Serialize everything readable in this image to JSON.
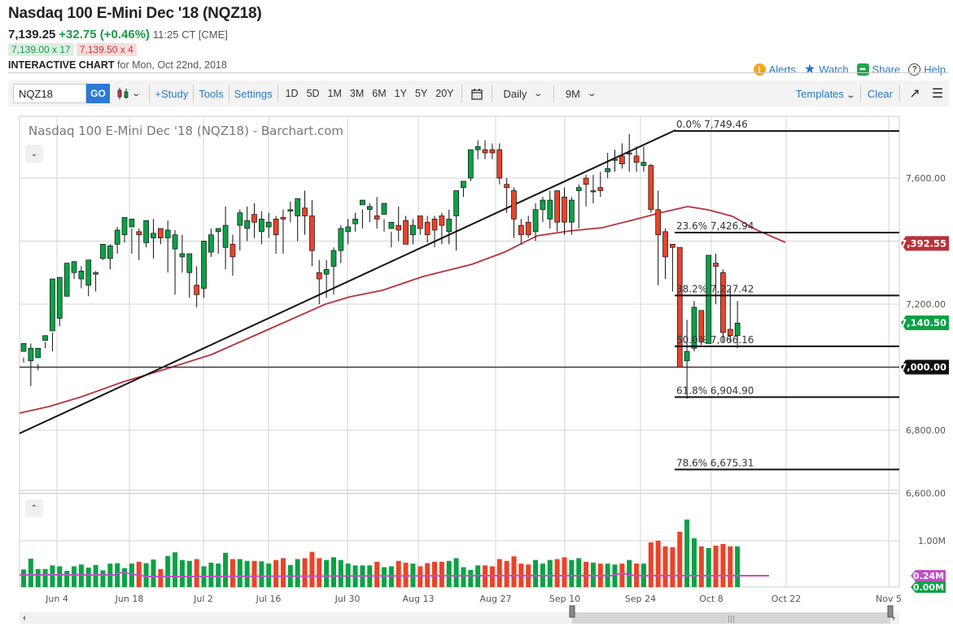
{
  "header": {
    "title": "Nasdaq 100 E-Mini Dec '18 (NQZ18)",
    "last_price": "7,139.25",
    "change": "+32.75 (+0.46%)",
    "time": "11:25 CT [CME]",
    "bid": "7,139.00 x 17",
    "ask": "7,139.50 x 4",
    "chart_label_bold": "INTERACTIVE CHART",
    "chart_label_rest": " for Mon, Oct 22nd, 2018"
  },
  "actions": {
    "alerts": "Alerts",
    "watch": "Watch",
    "share": "Share",
    "help": "Help"
  },
  "toolbar": {
    "symbol_value": "NQZ18",
    "go_label": "GO",
    "study_label": "+Study",
    "tools_label": "Tools",
    "settings_label": "Settings",
    "periods": [
      "1D",
      "5D",
      "1M",
      "3M",
      "6M",
      "1Y",
      "5Y",
      "20Y"
    ],
    "interval_label": "Daily",
    "range_label": "9M",
    "templates_label": "Templates",
    "clear_label": "Clear"
  },
  "colors": {
    "up": "#0aa245",
    "down": "#ea4328",
    "ma": "#b8323b",
    "volume_ma": "#c050c8",
    "link": "#2a7ac4",
    "grid": "#cccccc"
  },
  "chart_data": {
    "type": "candlestick",
    "title": "Nasdaq 100 E-Mini Dec '18 (NQZ18) - Barchart.com",
    "y_axis": {
      "ticks": [
        "7,600.00",
        "7,200.00",
        "6,800.00",
        "6,600.00"
      ],
      "price_tags": [
        {
          "label": "7,392.55",
          "value": 7392.55,
          "color": "#b8323b"
        },
        {
          "label": "7,140.50",
          "value": 7140.5,
          "color": "#0aa245"
        },
        {
          "label": "7,000.00",
          "value": 7000.0,
          "color": "#111111"
        }
      ]
    },
    "x_axis": {
      "ticks": [
        "Jun 4",
        "Jun 18",
        "Jul 2",
        "Jul 16",
        "Jul 30",
        "Aug 13",
        "Aug 27",
        "Sep 10",
        "Sep 24",
        "Oct 8",
        "Oct 22",
        "Nov 5"
      ]
    },
    "fibonacci": [
      {
        "label": "0.0% 7,749.46",
        "value": 7749.46
      },
      {
        "label": "23.6% 7,426.94",
        "value": 7426.94
      },
      {
        "label": "38.2% 7,227.42",
        "value": 7227.42
      },
      {
        "label": "50.0% 7,066.16",
        "value": 7066.16
      },
      {
        "label": "61.8% 6,904.90",
        "value": 6904.9
      },
      {
        "label": "78.6% 6,675.31",
        "value": 6675.31
      }
    ],
    "horizontal_line": 7000.0,
    "trendline": {
      "from_price": 6780,
      "to_price": 7749.46,
      "from_date": "May 25",
      "to_date": "Oct 1"
    },
    "moving_average": {
      "last": 7392.55
    },
    "candles": [
      [
        7050,
        7075,
        7030,
        7015
      ],
      [
        7020,
        7060,
        6940,
        7075
      ],
      [
        7030,
        7060,
        6990,
        7010
      ],
      [
        7085,
        7100,
        7080,
        7060
      ],
      [
        7115,
        7280,
        7050,
        7110
      ],
      [
        7155,
        7285,
        7130,
        7180
      ],
      [
        7225,
        7330,
        7200,
        7200
      ],
      [
        7300,
        7335,
        7280,
        7330
      ],
      [
        7280,
        7305,
        7250,
        7320
      ],
      [
        7260,
        7340,
        7225,
        7260
      ],
      [
        7295,
        7300,
        7240,
        7305
      ],
      [
        7345,
        7390,
        7345,
        7340
      ],
      [
        7345,
        7385,
        7310,
        7390
      ],
      [
        7390,
        7435,
        7360,
        7445
      ],
      [
        7420,
        7475,
        7395,
        7425
      ],
      [
        7445,
        7470,
        7360,
        7440
      ],
      [
        7430,
        7420,
        7340,
        7440
      ],
      [
        7395,
        7465,
        7380,
        7465
      ],
      [
        7410,
        7425,
        7345,
        7470
      ],
      [
        7440,
        7410,
        7390,
        7410
      ],
      [
        7410,
        7435,
        7300,
        7465
      ],
      [
        7375,
        7420,
        7230,
        7435
      ],
      [
        7350,
        7360,
        7300,
        7420
      ],
      [
        7300,
        7360,
        7220,
        7330
      ],
      [
        7260,
        7230,
        7190,
        7320
      ],
      [
        7250,
        7400,
        7270,
        7220
      ],
      [
        7365,
        7420,
        7350,
        7440
      ],
      [
        7430,
        7440,
        7360,
        7440
      ],
      [
        7380,
        7450,
        7310,
        7510
      ],
      [
        7390,
        7350,
        7290,
        7420
      ],
      [
        7450,
        7490,
        7370,
        7500
      ],
      [
        7440,
        7465,
        7400,
        7510
      ],
      [
        7485,
        7460,
        7410,
        7520
      ],
      [
        7430,
        7470,
        7390,
        7495
      ],
      [
        7445,
        7460,
        7410,
        7490
      ],
      [
        7470,
        7420,
        7360,
        7480
      ],
      [
        7475,
        7470,
        7360,
        7500
      ],
      [
        7495,
        7500,
        7460,
        7525
      ],
      [
        7480,
        7535,
        7400,
        7530
      ],
      [
        7505,
        7480,
        7420,
        7560
      ],
      [
        7480,
        7370,
        7320,
        7530
      ],
      [
        7300,
        7280,
        7200,
        7340
      ],
      [
        7295,
        7310,
        7220,
        7340
      ],
      [
        7320,
        7370,
        7230,
        7380
      ],
      [
        7370,
        7440,
        7330,
        7450
      ],
      [
        7430,
        7445,
        7390,
        7470
      ],
      [
        7455,
        7470,
        7430,
        7490
      ],
      [
        7515,
        7530,
        7440,
        7500
      ],
      [
        7500,
        7510,
        7460,
        7520
      ],
      [
        7480,
        7470,
        7440,
        7540
      ],
      [
        7485,
        7520,
        7430,
        7470
      ],
      [
        7440,
        7460,
        7380,
        7430
      ],
      [
        7450,
        7435,
        7400,
        7510
      ],
      [
        7465,
        7390,
        7390,
        7480
      ],
      [
        7420,
        7450,
        7390,
        7470
      ],
      [
        7480,
        7440,
        7420,
        7470
      ],
      [
        7460,
        7420,
        7395,
        7480
      ],
      [
        7470,
        7435,
        7380,
        7480
      ],
      [
        7480,
        7450,
        7390,
        7490
      ],
      [
        7430,
        7470,
        7390,
        7500
      ],
      [
        7480,
        7560,
        7370,
        7510
      ],
      [
        7570,
        7590,
        7540,
        7580
      ],
      [
        7600,
        7690,
        7590,
        7600
      ],
      [
        7690,
        7700,
        7660,
        7720
      ],
      [
        7690,
        7680,
        7660,
        7720
      ],
      [
        7690,
        7680,
        7660,
        7710
      ],
      [
        7690,
        7600,
        7580,
        7710
      ],
      [
        7580,
        7570,
        7490,
        7600
      ],
      [
        7560,
        7470,
        7410,
        7570
      ],
      [
        7450,
        7420,
        7390,
        7470
      ],
      [
        7460,
        7420,
        7410,
        7480
      ],
      [
        7430,
        7500,
        7400,
        7520
      ],
      [
        7500,
        7530,
        7460,
        7540
      ],
      [
        7470,
        7530,
        7440,
        7560
      ],
      [
        7560,
        7460,
        7430,
        7560
      ],
      [
        7540,
        7460,
        7420,
        7570
      ],
      [
        7460,
        7530,
        7420,
        7540
      ],
      [
        7560,
        7570,
        7440,
        7580
      ],
      [
        7600,
        7580,
        7510,
        7610
      ],
      [
        7560,
        7560,
        7520,
        7610
      ],
      [
        7570,
        7560,
        7540,
        7620
      ],
      [
        7620,
        7630,
        7600,
        7680
      ],
      [
        7660,
        7660,
        7620,
        7690
      ],
      [
        7670,
        7645,
        7630,
        7710
      ],
      [
        7680,
        7680,
        7620,
        7740
      ],
      [
        7670,
        7650,
        7620,
        7700
      ],
      [
        7640,
        7650,
        7620,
        7700
      ],
      [
        7640,
        7500,
        7490,
        7645
      ],
      [
        7500,
        7420,
        7260,
        7560
      ],
      [
        7430,
        7350,
        7280,
        7440
      ],
      [
        7390,
        7380,
        7240,
        7390
      ],
      [
        7380,
        7000,
        7000,
        7380
      ],
      [
        7020,
        7050,
        6900,
        7150
      ],
      [
        7060,
        7190,
        7050,
        7210
      ],
      [
        7180,
        7080,
        7070,
        7180
      ],
      [
        7075,
        7355,
        7075,
        7355
      ],
      [
        7330,
        7320,
        7200,
        7360
      ],
      [
        7300,
        7110,
        7080,
        7310
      ],
      [
        7120,
        7100,
        7080,
        7250
      ],
      [
        7100,
        7140,
        7060,
        7210
      ]
    ],
    "volume": {
      "ticks": [
        "1.00M"
      ],
      "tags": [
        {
          "label": "0.24M",
          "color": "#c050c8"
        },
        {
          "label": "0.00M",
          "color": "#0aa245"
        }
      ]
    }
  },
  "scrollbar": {
    "thumb_from": 0.615,
    "thumb_to": 0.985
  }
}
